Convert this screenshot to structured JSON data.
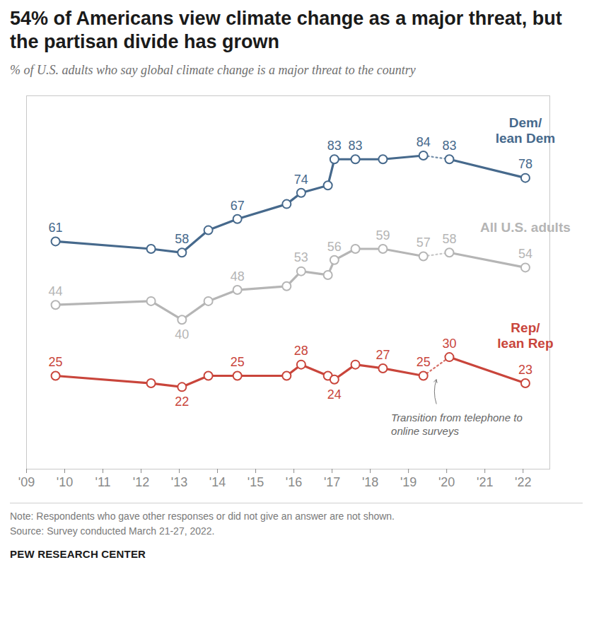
{
  "chart_data": {
    "type": "line",
    "title": "54% of Americans view climate change as a major threat, but the partisan divide has grown",
    "subtitle": "% of U.S. adults who say global climate change is a major threat to the country",
    "note": "Note: Respondents who gave other responses or did not give an answer are not shown.",
    "source": "Source: Survey conducted March 21-27, 2022.",
    "credit": "PEW RESEARCH CENTER",
    "x": [
      2009.76,
      2012.26,
      2013.07,
      2013.76,
      2014.52,
      2015.81,
      2016.19,
      2016.89,
      2017.06,
      2017.61,
      2018.33,
      2019.39,
      2020.07,
      2022.06
    ],
    "series": [
      {
        "name": "Dem/\nlean Dem",
        "color": "#46698c",
        "values": [
          61,
          59,
          58,
          64,
          67,
          71,
          74,
          76,
          83,
          83,
          83,
          84,
          83,
          78
        ],
        "value_labels": [
          "61",
          null,
          "58",
          null,
          "67",
          null,
          "74",
          null,
          "83",
          "83",
          null,
          "84",
          "83",
          "78"
        ]
      },
      {
        "name": "All U.S. adults",
        "color": "#b5b5b5",
        "values": [
          44,
          45,
          40,
          45,
          48,
          49,
          53,
          52,
          56,
          59,
          59,
          57,
          58,
          54
        ],
        "value_labels": [
          "44",
          null,
          "40",
          null,
          "48",
          null,
          "53",
          null,
          "56",
          null,
          "59",
          "57",
          "58",
          "54"
        ]
      },
      {
        "name": "Rep/\nlean Rep",
        "color": "#c9453b",
        "values": [
          25,
          23,
          22,
          25,
          25,
          25,
          28,
          25,
          24,
          28,
          27,
          25,
          30,
          23
        ],
        "value_labels": [
          "25",
          null,
          "22",
          null,
          "25",
          null,
          "28",
          null,
          "24",
          null,
          "27",
          "25",
          "30",
          "23"
        ]
      }
    ],
    "annotations": [
      {
        "text": "Transition from telephone to online surveys",
        "x": 2019.73
      }
    ],
    "xlim": [
      2009,
      2022.7
    ],
    "xticks": [
      {
        "value": 2009,
        "label": "'09"
      },
      {
        "value": 2010,
        "label": "'10"
      },
      {
        "value": 2011,
        "label": "'11"
      },
      {
        "value": 2012,
        "label": "'12"
      },
      {
        "value": 2013,
        "label": "'13"
      },
      {
        "value": 2014,
        "label": "'14"
      },
      {
        "value": 2015,
        "label": "'15"
      },
      {
        "value": 2016,
        "label": "'16"
      },
      {
        "value": 2017,
        "label": "'17"
      },
      {
        "value": 2018,
        "label": "'18"
      },
      {
        "value": 2019,
        "label": "'19"
      },
      {
        "value": 2020,
        "label": "'20"
      },
      {
        "value": 2021,
        "label": "'21"
      },
      {
        "value": 2022,
        "label": "'22"
      }
    ],
    "ylim": [
      0,
      100
    ],
    "grid": false,
    "tick_labels": "x",
    "data_labels": true,
    "marker": "circle",
    "line_style": "solid"
  }
}
